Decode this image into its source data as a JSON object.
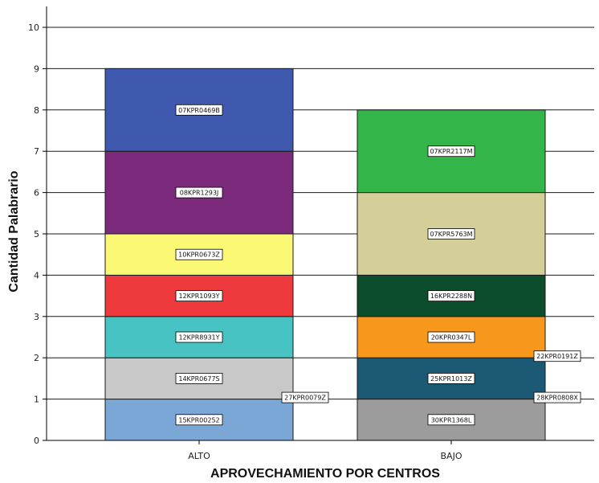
{
  "chart_data": {
    "type": "bar",
    "stacked": true,
    "xlabel": "APROVECHAMIENTO POR CENTROS",
    "ylabel": "Cantidad Palabrario",
    "ylim": [
      0,
      10.5
    ],
    "yticks": [
      0,
      1,
      2,
      3,
      4,
      5,
      6,
      7,
      8,
      9,
      10
    ],
    "grid": true,
    "categories": [
      "ALTO",
      "BAJO"
    ],
    "stacks": [
      {
        "category": "ALTO",
        "segments": [
          {
            "name": "15KPR00252",
            "value": 1,
            "color": "#7aa7d6"
          },
          {
            "name": "27KPR0079Z",
            "value": 0,
            "color": "#7aa7d6"
          },
          {
            "name": "14KPR0677S",
            "value": 1,
            "color": "#c8c8c8"
          },
          {
            "name": "12KPR8931Y",
            "value": 1,
            "color": "#48c3c4"
          },
          {
            "name": "12KPR1093Y",
            "value": 1,
            "color": "#ef3a3d"
          },
          {
            "name": "10KPR0673Z",
            "value": 1,
            "color": "#faf874"
          },
          {
            "name": "08KPR1293J",
            "value": 2,
            "color": "#7b2a7c"
          },
          {
            "name": "07KPR0469B",
            "value": 2,
            "color": "#3e59ad"
          }
        ]
      },
      {
        "category": "BAJO",
        "segments": [
          {
            "name": "30KPR1368L",
            "value": 1,
            "color": "#9c9c9c"
          },
          {
            "name": "28KPR0808X",
            "value": 0,
            "color": "#9c9c9c"
          },
          {
            "name": "25KPR1013Z",
            "value": 1,
            "color": "#1c5975"
          },
          {
            "name": "22KPR0191Z",
            "value": 0,
            "color": "#1c5975"
          },
          {
            "name": "20KPR0347L",
            "value": 1,
            "color": "#f7981d"
          },
          {
            "name": "16KPR2288N",
            "value": 1,
            "color": "#0c4e2c"
          },
          {
            "name": "07KPR5763M",
            "value": 2,
            "color": "#d4cf99"
          },
          {
            "name": "07KPR2117M",
            "value": 2,
            "color": "#33b54a"
          }
        ]
      }
    ]
  }
}
